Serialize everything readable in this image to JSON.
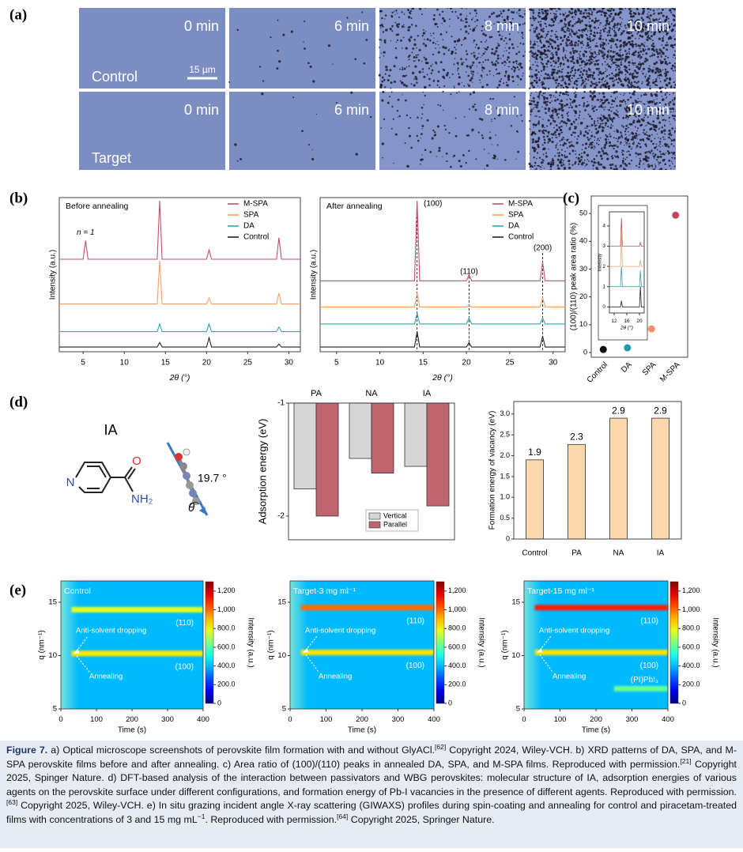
{
  "figure": {
    "panel_labels": [
      "(a)",
      "(b)",
      "(c)",
      "(d)",
      "(e)"
    ],
    "micrographs": {
      "rows": [
        "Control",
        "Target"
      ],
      "times": [
        [
          "0 min",
          "6 min",
          "8 min",
          "10 min"
        ],
        [
          "0 min",
          "6 min",
          "8 min",
          "10 min"
        ]
      ],
      "scale_bar": "15 µm"
    },
    "molecule": {
      "name": "IA",
      "atoms": [
        "N",
        "O",
        "NH₂"
      ],
      "angle": "19.7 °",
      "angle_symbol": "θ"
    }
  },
  "chart_data": [
    {
      "type": "line",
      "title": "Before annealing",
      "x_label": "2θ (°)",
      "y_label": "Intensity (a.u.)",
      "annotations": [
        "n = 1"
      ],
      "legend": "upper right",
      "x": [
        2.1,
        5,
        5.3,
        5.6,
        8,
        14,
        14.3,
        14.6,
        20,
        20.3,
        20.6,
        25,
        28.5,
        28.8,
        29.1,
        31.4
      ],
      "series": [
        {
          "name": "M-SPA",
          "color": "#c2506b",
          "values": [
            60,
            60,
            72,
            60,
            60,
            60,
            98,
            60,
            60,
            66,
            60,
            60,
            60,
            74,
            60,
            60
          ]
        },
        {
          "name": "SPA",
          "color": "#f2a06e",
          "values": [
            31,
            31,
            31,
            31,
            31,
            31,
            59,
            31,
            31,
            35,
            31,
            31,
            31,
            38,
            31,
            31
          ]
        },
        {
          "name": "DA",
          "color": "#3aa2b2",
          "values": [
            13,
            13,
            13,
            13,
            13,
            13,
            18,
            13,
            13,
            18,
            13,
            13,
            13,
            16,
            13,
            13
          ]
        },
        {
          "name": "Control",
          "color": "#222222",
          "values": [
            3,
            3,
            3,
            3,
            3,
            3,
            6,
            3,
            3,
            9,
            3,
            3,
            3,
            5,
            3,
            3
          ]
        }
      ],
      "xlim": [
        2.1,
        31.4
      ],
      "xticks": [
        5,
        10,
        15,
        20,
        25,
        30
      ],
      "ylim": [
        0,
        100
      ]
    },
    {
      "type": "line",
      "title": "After annealing",
      "x_label": "2θ (°)",
      "y_label": "Intensity (a.u.)",
      "legend": "upper right",
      "peak_labels": [
        "(100)",
        "(110)",
        "(200)"
      ],
      "reference_lines": [
        14.3,
        20.3,
        28.8
      ],
      "x": [
        3.1,
        5,
        5.3,
        5.6,
        8,
        14,
        14.3,
        14.6,
        20,
        20.3,
        20.6,
        25,
        28.5,
        28.8,
        29.1,
        31.4
      ],
      "series": [
        {
          "name": "M-SPA",
          "color": "#c2506b",
          "values": [
            46,
            46,
            46,
            46,
            46,
            46,
            98,
            46,
            46,
            50,
            46,
            46,
            46,
            58,
            46,
            46
          ]
        },
        {
          "name": "SPA",
          "color": "#f2a06e",
          "values": [
            29,
            29,
            29,
            29,
            29,
            29,
            38,
            29,
            29,
            30,
            29,
            29,
            29,
            35,
            29,
            29
          ]
        },
        {
          "name": "DA",
          "color": "#3aa2b2",
          "values": [
            18,
            18,
            18,
            18,
            18,
            18,
            25,
            18,
            18,
            22,
            18,
            18,
            18,
            22,
            18,
            18
          ]
        },
        {
          "name": "Control",
          "color": "#222222",
          "values": [
            3,
            3,
            3,
            3,
            3,
            3,
            13,
            3,
            3,
            6,
            3,
            3,
            3,
            10,
            3,
            3
          ]
        }
      ],
      "xlim": [
        3.1,
        31.4
      ],
      "xticks": [
        5,
        10,
        15,
        20,
        25,
        30
      ],
      "ylim": [
        0,
        100
      ]
    },
    {
      "type": "scatter",
      "y_label": "(100)/(110) peak area ratio (%)",
      "categories": [
        "Control",
        "DA",
        "SPA",
        "M-SPA"
      ],
      "values": [
        1.1,
        1.7,
        8.5,
        49.4
      ],
      "colors": [
        "#111111",
        "#1f9aa8",
        "#f0906a",
        "#c2445e"
      ],
      "ylim": [
        -1.7,
        56.3
      ],
      "yticks": [
        0,
        10,
        20,
        30,
        40,
        50
      ]
    },
    {
      "type": "line",
      "x_label": "2θ (°)",
      "y_label": "Intensity",
      "x": [
        10.5,
        14,
        14.3,
        14.6,
        20,
        20.3,
        20.6,
        21.5
      ],
      "series": [
        {
          "name": "M-SPA",
          "color": "#c2506b",
          "values": [
            3,
            3,
            4.4,
            3,
            3,
            3.2,
            3,
            3
          ]
        },
        {
          "name": "SPA",
          "color": "#f2a06e",
          "values": [
            2,
            2,
            3.8,
            2,
            2,
            2.3,
            2,
            2
          ]
        },
        {
          "name": "DA",
          "color": "#3aa2b2",
          "values": [
            1,
            1,
            2,
            1,
            1,
            1.8,
            1,
            1
          ]
        },
        {
          "name": "Control",
          "color": "#222222",
          "values": [
            0,
            0,
            0.3,
            0,
            0,
            1.0,
            0,
            0
          ]
        }
      ],
      "xlim": [
        10.5,
        21.5
      ],
      "xticks": [
        12,
        16,
        20
      ],
      "ylim": [
        -0.3,
        4.7
      ],
      "yticks": [
        0,
        1,
        2,
        3,
        4
      ]
    },
    {
      "type": "bar",
      "y_label": "Adsorption energy (eV)",
      "categories": [
        "PA",
        "NA",
        "IA"
      ],
      "legend": "lower right",
      "series": [
        {
          "name": "Vertical",
          "color": "#d6d6d6",
          "values": [
            -1.76,
            -1.49,
            -1.56
          ]
        },
        {
          "name": "Parallel",
          "color": "#c0646e",
          "values": [
            -2.0,
            -1.62,
            -1.91
          ]
        }
      ],
      "ylim": [
        -2.21,
        -1
      ],
      "yticks": [
        -1,
        -2
      ]
    },
    {
      "type": "bar",
      "y_label": "Formation energy of vacancy (eV)",
      "categories": [
        "Control",
        "PA",
        "NA",
        "IA"
      ],
      "values": [
        1.9,
        2.27,
        2.9,
        2.9
      ],
      "value_labels": [
        "1.9",
        "2.3",
        "2.9",
        "2.9"
      ],
      "color": "#fbd7ad",
      "ylim": [
        0,
        3.3
      ],
      "yticks": [
        0,
        0.5,
        {
          "value": 1,
          "label": "1.0"
        },
        1.5,
        {
          "value": 2,
          "label": "2.0"
        },
        2.5,
        {
          "value": 3,
          "label": "3.0"
        }
      ]
    },
    {
      "type": "heatmap",
      "title": "Control",
      "x_label": "Time (s)",
      "y_label": "q (nm⁻¹)",
      "colorbar_label": "Intensity (a.u.)",
      "annotations": [
        "Anti-solvent dropping",
        "Annealing"
      ],
      "background": 400,
      "bands": [
        {
          "label": "(110)",
          "q": 14.3,
          "t_start": 30,
          "t_end": 400,
          "intensity": 780
        },
        {
          "label": "(100)",
          "q": 10.2,
          "t_start": 30,
          "t_end": 400,
          "intensity": 840
        }
      ],
      "xlim": [
        0,
        400
      ],
      "xticks": [
        0,
        100,
        200,
        300,
        400
      ],
      "ylim": [
        5,
        17
      ],
      "yticks": [
        5,
        10,
        15
      ],
      "clim": [
        0,
        1300
      ],
      "cticks": [
        0,
        {
          "value": 200,
          "label": "200.0"
        },
        {
          "value": 400,
          "label": "400.0"
        },
        {
          "value": 600,
          "label": "600.0"
        },
        {
          "value": 800,
          "label": "800.0"
        },
        {
          "value": 1000,
          "label": "1,000"
        },
        {
          "value": 1200,
          "label": "1,200"
        }
      ]
    },
    {
      "type": "heatmap",
      "title": "Target-3 mg ml⁻¹",
      "x_label": "Time (s)",
      "y_label": "q (nm⁻¹)",
      "colorbar_label": "Intensity (a.u.)",
      "annotations": [
        "Anti-solvent dropping",
        "Annealing"
      ],
      "background": 400,
      "bands": [
        {
          "label": "(110)",
          "q": 14.5,
          "t_start": 30,
          "t_end": 400,
          "intensity": 1000
        },
        {
          "label": "(100)",
          "q": 10.3,
          "t_start": 30,
          "t_end": 400,
          "intensity": 850
        }
      ],
      "xlim": [
        0,
        400
      ],
      "xticks": [
        0,
        100,
        200,
        300,
        400
      ],
      "ylim": [
        5,
        17
      ],
      "yticks": [
        5,
        10,
        15
      ],
      "clim": [
        0,
        1300
      ],
      "cticks": [
        0,
        {
          "value": 200,
          "label": "200.0"
        },
        {
          "value": 400,
          "label": "400.0"
        },
        {
          "value": 600,
          "label": "600.0"
        },
        {
          "value": 800,
          "label": "800.0"
        },
        {
          "value": 1000,
          "label": "1,000"
        },
        {
          "value": 1200,
          "label": "1,200"
        }
      ]
    },
    {
      "type": "heatmap",
      "title": "Target-15 mg ml⁻¹",
      "x_label": "Time (s)",
      "y_label": "q (nm⁻¹)",
      "colorbar_label": "Intensity (a.u.)",
      "annotations": [
        "Anti-solvent dropping",
        "Annealing"
      ],
      "background": 400,
      "bands": [
        {
          "label": "(110)",
          "q": 14.5,
          "t_start": 30,
          "t_end": 400,
          "intensity": 1100
        },
        {
          "label": "(100)",
          "q": 10.3,
          "t_start": 30,
          "t_end": 400,
          "intensity": 850
        },
        {
          "label": "(PI)PbI₃",
          "q": 6.9,
          "t_start": 250,
          "t_end": 400,
          "intensity": 620
        }
      ],
      "xlim": [
        0,
        400
      ],
      "xticks": [
        0,
        100,
        200,
        300,
        400
      ],
      "ylim": [
        5,
        17
      ],
      "yticks": [
        5,
        10,
        15
      ],
      "clim": [
        0,
        1300
      ],
      "cticks": [
        0,
        {
          "value": 200,
          "label": "200.0"
        },
        {
          "value": 400,
          "label": "400.0"
        },
        {
          "value": 600,
          "label": "600.0"
        },
        {
          "value": 800,
          "label": "800.0"
        },
        {
          "value": 1000,
          "label": "1,000"
        },
        {
          "value": 1200,
          "label": "1,200"
        }
      ]
    }
  ],
  "caption": {
    "label": "Figure 7.",
    "parts": [
      " a) Optical microscope screenshots of perovskite film formation with and without GlyACl.",
      " Copyright 2024, Wiley-VCH. b) XRD patterns of DA, SPA, and M-SPA perovskite films before and after annealing. c) Area ratio of (100)/(110) peaks in annealed DA, SPA, and M-SPA films. Reproduced with permission.",
      " Copyright 2025, Spinger Nature. d) DFT-based analysis of the interaction between passivators and WBG perovskites: molecular structure of IA, adsorption energies of various agents on the perovskite surface under different configurations, and formation energy of Pb-I vacancies in the presence of different agents. Reproduced with permission.",
      " Copyright 2025, Wiley-VCH. e) In situ grazing incident angle X-ray scattering (GIWAXS) profiles during spin-coating and annealing for control and piracetam-treated films with concentrations of 3 and 15 mg mL",
      ". Reproduced with permission.",
      " Copyright 2025, Springer Nature."
    ],
    "refs": [
      "[62]",
      "[21]",
      "[63]",
      "−1",
      "[64]"
    ]
  }
}
